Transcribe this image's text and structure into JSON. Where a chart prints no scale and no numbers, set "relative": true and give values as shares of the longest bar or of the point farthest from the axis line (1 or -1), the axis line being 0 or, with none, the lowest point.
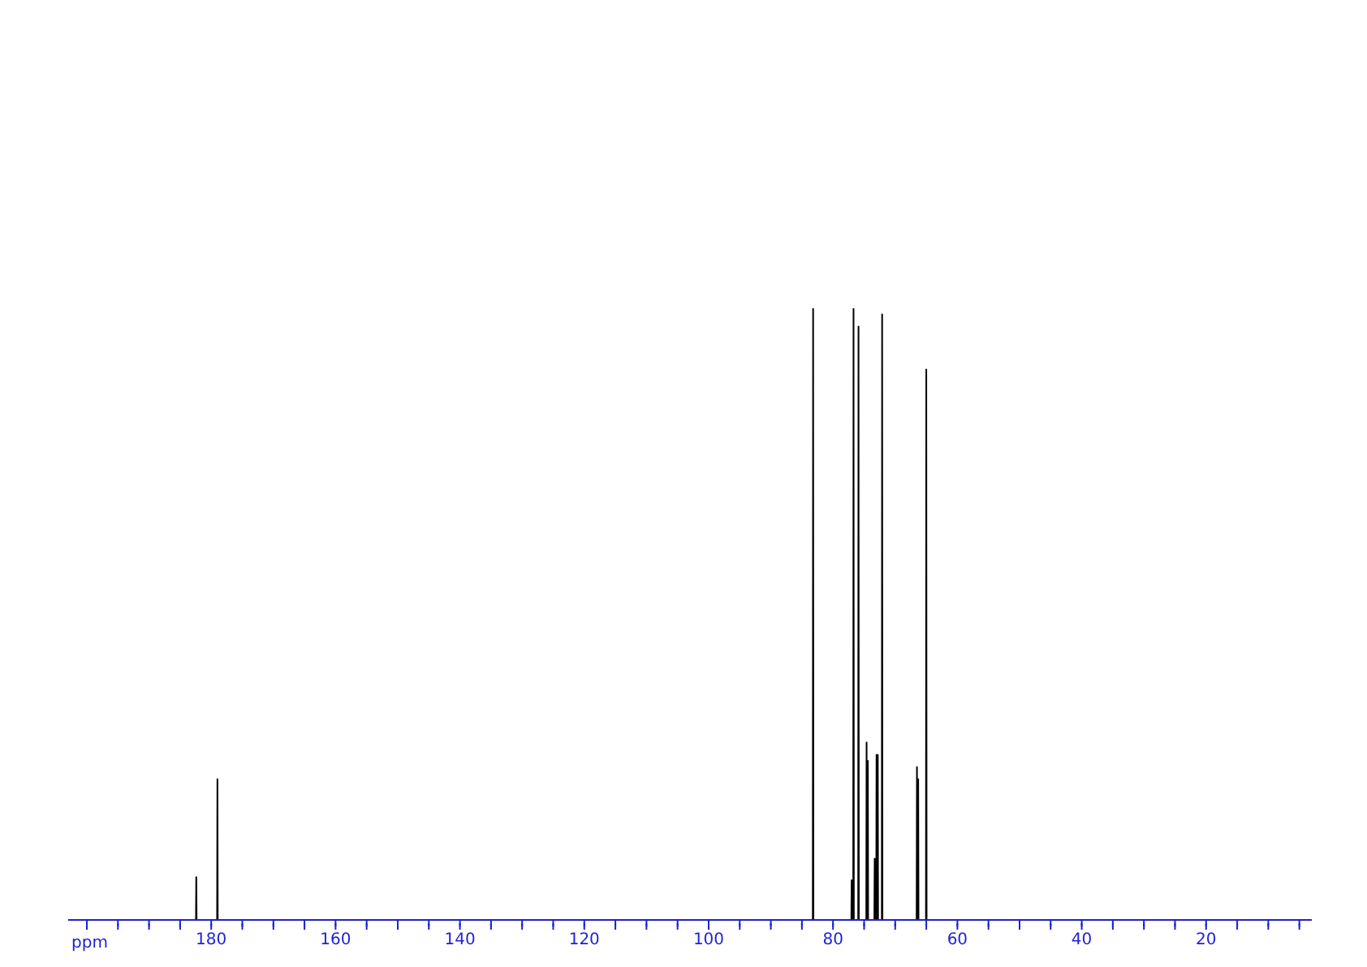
{
  "chart_data": {
    "type": "line",
    "relative": true,
    "xlabel": "ppm",
    "xlim": [
      203,
      3
    ],
    "xticks": [
      {
        "value": 200,
        "label": null
      },
      {
        "value": 195,
        "label": null
      },
      {
        "value": 190,
        "label": null
      },
      {
        "value": 185,
        "label": null
      },
      180,
      {
        "value": 175,
        "label": null
      },
      {
        "value": 170,
        "label": null
      },
      {
        "value": 165,
        "label": null
      },
      160,
      {
        "value": 155,
        "label": null
      },
      {
        "value": 150,
        "label": null
      },
      {
        "value": 145,
        "label": null
      },
      140,
      {
        "value": 135,
        "label": null
      },
      {
        "value": 130,
        "label": null
      },
      {
        "value": 125,
        "label": null
      },
      120,
      {
        "value": 115,
        "label": null
      },
      {
        "value": 110,
        "label": null
      },
      {
        "value": 105,
        "label": null
      },
      100,
      {
        "value": 95,
        "label": null
      },
      {
        "value": 90,
        "label": null
      },
      {
        "value": 85,
        "label": null
      },
      80,
      {
        "value": 75,
        "label": null
      },
      {
        "value": 70,
        "label": null
      },
      {
        "value": 65,
        "label": null
      },
      60,
      {
        "value": 55,
        "label": null
      },
      {
        "value": 50,
        "label": null
      },
      {
        "value": 45,
        "label": null
      },
      40,
      {
        "value": 35,
        "label": null
      },
      {
        "value": 30,
        "label": null
      },
      {
        "value": 25,
        "label": null
      },
      20,
      {
        "value": 15,
        "label": null
      },
      {
        "value": 10,
        "label": null
      },
      {
        "value": 5,
        "label": null
      }
    ],
    "series": [
      {
        "color": "#000000",
        "x": [
          203,
          182.45,
          182.4,
          182.35,
          179.05,
          179.0,
          178.95,
          83.25,
          83.2,
          83.15,
          77.05,
          77.0,
          76.95,
          76.75,
          76.7,
          76.65,
          75.95,
          75.9,
          75.85,
          74.65,
          74.6,
          74.55,
          74.45,
          74.4,
          74.35,
          73.35,
          73.3,
          73.25,
          73.05,
          73.0,
          72.95,
          72.85,
          72.8,
          72.75,
          72.15,
          72.1,
          72.05,
          66.55,
          66.5,
          66.45,
          66.35,
          66.3,
          66.25,
          65.05,
          65.0,
          64.95,
          3
        ],
        "values": [
          0,
          0,
          0.07,
          0,
          0,
          0.23,
          0,
          0,
          1,
          0,
          0,
          0.065,
          0,
          0,
          1,
          0,
          0,
          0.97,
          0,
          0,
          0.29,
          0,
          0,
          0.26,
          0,
          0,
          0.1,
          0,
          0,
          0.27,
          0,
          0,
          0.27,
          0,
          0,
          0.99,
          0,
          0,
          0.25,
          0,
          0,
          0.23,
          0,
          0,
          0.9,
          0,
          0
        ]
      }
    ]
  }
}
